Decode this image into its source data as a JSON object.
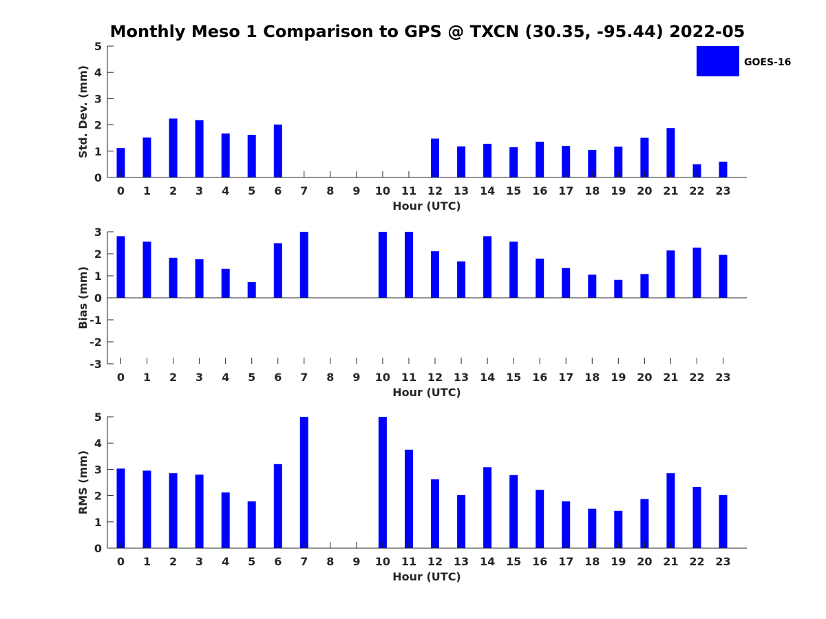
{
  "chart_data": {
    "type": "bar",
    "title": "Monthly Meso 1 Comparison to GPS @ TXCN (30.35, -95.44) 2022-05",
    "colors": {
      "bar": "#0000ff",
      "axis": "#262626",
      "title": "#000000"
    },
    "legend": {
      "label": "GOES-16",
      "location": "top-right"
    },
    "panels": [
      {
        "name": "std-dev",
        "ylabel": "Std. Dev. (mm)",
        "xlabel": "Hour (UTC)",
        "ylim": [
          0,
          5
        ],
        "yticks": [
          "0",
          "1",
          "2",
          "3",
          "4",
          "5"
        ],
        "categories": [
          "0",
          "1",
          "2",
          "3",
          "4",
          "5",
          "6",
          "7",
          "8",
          "9",
          "10",
          "11",
          "12",
          "13",
          "14",
          "15",
          "16",
          "17",
          "18",
          "19",
          "20",
          "21",
          "22",
          "23"
        ],
        "series": [
          {
            "name": "GOES-16",
            "values": [
              1.12,
              1.52,
              2.24,
              2.18,
              1.67,
              1.62,
              2.01,
              null,
              null,
              null,
              null,
              null,
              1.48,
              1.18,
              1.28,
              1.15,
              1.36,
              1.2,
              1.05,
              1.17,
              1.51,
              1.88,
              0.5,
              0.6
            ]
          }
        ]
      },
      {
        "name": "bias",
        "ylabel": "Bias (mm)",
        "xlabel": "Hour (UTC)",
        "ylim": [
          -3,
          3
        ],
        "yticks": [
          "-3",
          "-2",
          "-1",
          "0",
          "1",
          "2",
          "3"
        ],
        "categories": [
          "0",
          "1",
          "2",
          "3",
          "4",
          "5",
          "6",
          "7",
          "8",
          "9",
          "10",
          "11",
          "12",
          "13",
          "14",
          "15",
          "16",
          "17",
          "18",
          "19",
          "20",
          "21",
          "22",
          "23"
        ],
        "series": [
          {
            "name": "GOES-16",
            "values": [
              2.8,
              2.55,
              1.82,
              1.75,
              1.32,
              0.72,
              2.48,
              3.0,
              null,
              null,
              3.0,
              3.0,
              2.12,
              1.65,
              2.8,
              2.55,
              1.78,
              1.35,
              1.05,
              0.82,
              1.08,
              2.15,
              2.28,
              1.95
            ]
          }
        ]
      },
      {
        "name": "rms",
        "ylabel": "RMS (mm)",
        "xlabel": "Hour (UTC)",
        "ylim": [
          0,
          5
        ],
        "yticks": [
          "0",
          "1",
          "2",
          "3",
          "4",
          "5"
        ],
        "categories": [
          "0",
          "1",
          "2",
          "3",
          "4",
          "5",
          "6",
          "7",
          "8",
          "9",
          "10",
          "11",
          "12",
          "13",
          "14",
          "15",
          "16",
          "17",
          "18",
          "19",
          "20",
          "21",
          "22",
          "23"
        ],
        "series": [
          {
            "name": "GOES-16",
            "values": [
              3.03,
              2.95,
              2.85,
              2.8,
              2.12,
              1.78,
              3.2,
              5.0,
              null,
              null,
              5.0,
              3.75,
              2.62,
              2.02,
              3.08,
              2.78,
              2.22,
              1.78,
              1.5,
              1.42,
              1.87,
              2.85,
              2.33,
              2.02
            ]
          }
        ]
      }
    ]
  }
}
